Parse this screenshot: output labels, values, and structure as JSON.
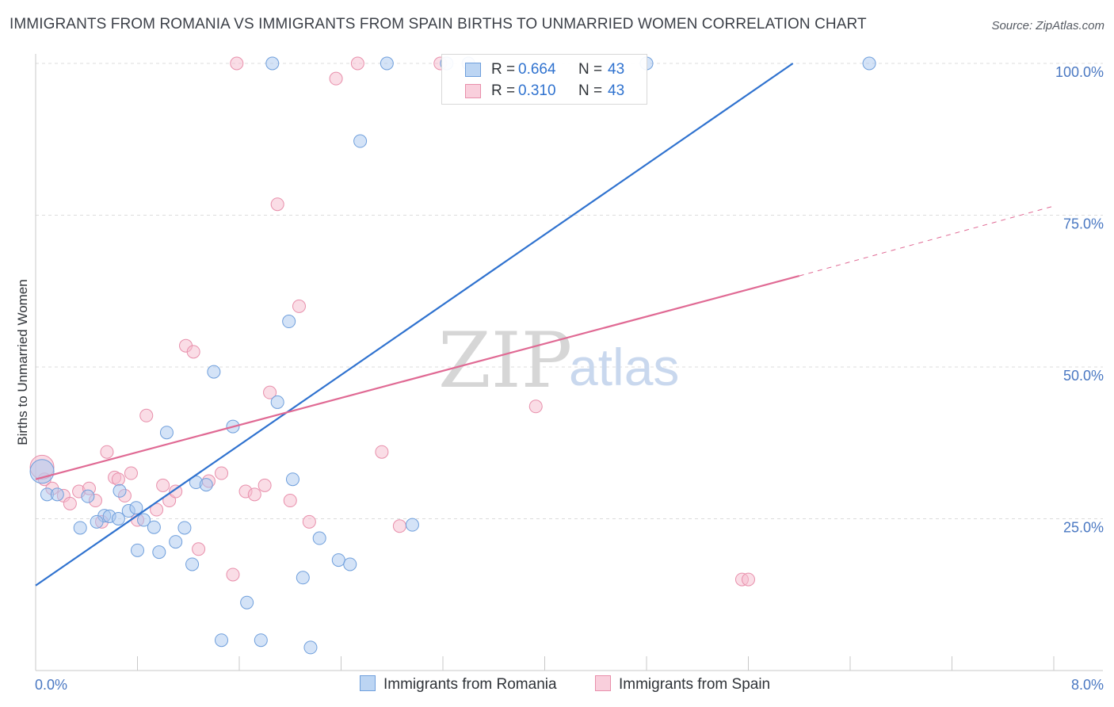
{
  "header": {
    "title": "IMMIGRANTS FROM ROMANIA VS IMMIGRANTS FROM SPAIN BIRTHS TO UNMARRIED WOMEN CORRELATION CHART",
    "source": "Source: ZipAtlas.com"
  },
  "watermark": {
    "zip": "ZIP",
    "atlas": "atlas"
  },
  "legend": {
    "rows": [
      {
        "r_label": "R =",
        "r_value": "0.664",
        "n_label": "N =",
        "n_value": "43"
      },
      {
        "r_label": "R =",
        "r_value": "0.310",
        "n_label": "N =",
        "n_value": "43"
      }
    ]
  },
  "colors": {
    "romania_fill": "#a9c8ef",
    "romania_edge": "#6f9fdc",
    "romania_line": "#2f72cf",
    "spain_fill": "#f6bccd",
    "spain_edge": "#e88fab",
    "spain_line": "#e06a94",
    "tick_text": "#4a78c2",
    "grid": "#dcdcdc"
  },
  "chart_data": {
    "type": "scatter",
    "title": "IMMIGRANTS FROM ROMANIA VS IMMIGRANTS FROM SPAIN BIRTHS TO UNMARRIED WOMEN CORRELATION CHART",
    "xlabel": "",
    "ylabel": "Births to Unmarried Women",
    "xlim": [
      0,
      8
    ],
    "ylim": [
      0,
      100
    ],
    "x_tick_labels": [
      "0.0%",
      "8.0%"
    ],
    "y_ticks": [
      25,
      50,
      75,
      100
    ],
    "y_tick_labels": [
      "25.0%",
      "50.0%",
      "75.0%",
      "100.0%"
    ],
    "grid": true,
    "legend_position": "top-center",
    "series": [
      {
        "name": "Immigrants from Romania",
        "r": 0.664,
        "n": 43,
        "points": [
          [
            0.09,
            29.0
          ],
          [
            0.17,
            29.0
          ],
          [
            0.41,
            28.7
          ],
          [
            0.54,
            25.5
          ],
          [
            0.66,
            29.6
          ],
          [
            0.35,
            23.5
          ],
          [
            0.48,
            24.5
          ],
          [
            0.58,
            25.4
          ],
          [
            0.65,
            25.0
          ],
          [
            0.73,
            26.3
          ],
          [
            0.8,
            19.8
          ],
          [
            0.79,
            26.8
          ],
          [
            0.85,
            24.8
          ],
          [
            0.93,
            23.6
          ],
          [
            0.97,
            19.5
          ],
          [
            1.03,
            39.2
          ],
          [
            1.1,
            21.2
          ],
          [
            1.17,
            23.5
          ],
          [
            1.23,
            17.5
          ],
          [
            1.26,
            31.0
          ],
          [
            1.34,
            30.6
          ],
          [
            1.4,
            49.2
          ],
          [
            1.46,
            5.0
          ],
          [
            1.55,
            40.2
          ],
          [
            1.66,
            11.2
          ],
          [
            1.77,
            5.0
          ],
          [
            1.86,
            100.0
          ],
          [
            1.9,
            44.2
          ],
          [
            1.99,
            57.5
          ],
          [
            2.02,
            31.5
          ],
          [
            2.1,
            15.3
          ],
          [
            2.16,
            3.8
          ],
          [
            2.23,
            21.8
          ],
          [
            2.38,
            18.2
          ],
          [
            2.47,
            17.5
          ],
          [
            2.55,
            87.2
          ],
          [
            2.76,
            100.0
          ],
          [
            2.96,
            24.0
          ],
          [
            3.23,
            100.0
          ],
          [
            3.4,
            100.0
          ],
          [
            4.8,
            100.0
          ],
          [
            6.55,
            100.0
          ],
          [
            0.05,
            32.8
          ]
        ],
        "trend": {
          "x": [
            0.0,
            5.95
          ],
          "y": [
            14.0,
            100.0
          ]
        }
      },
      {
        "name": "Immigrants from Spain",
        "r": 0.31,
        "n": 43,
        "points": [
          [
            0.07,
            31.5
          ],
          [
            0.13,
            30.0
          ],
          [
            0.22,
            28.8
          ],
          [
            0.27,
            27.5
          ],
          [
            0.34,
            29.5
          ],
          [
            0.42,
            30.0
          ],
          [
            0.47,
            28.0
          ],
          [
            0.52,
            24.5
          ],
          [
            0.56,
            36.0
          ],
          [
            0.62,
            31.8
          ],
          [
            0.65,
            31.5
          ],
          [
            0.7,
            28.8
          ],
          [
            0.75,
            32.5
          ],
          [
            0.8,
            24.8
          ],
          [
            0.87,
            42.0
          ],
          [
            0.95,
            26.5
          ],
          [
            1.0,
            30.5
          ],
          [
            1.05,
            28.0
          ],
          [
            1.1,
            29.5
          ],
          [
            1.18,
            53.5
          ],
          [
            1.24,
            52.5
          ],
          [
            1.28,
            20.0
          ],
          [
            1.36,
            31.2
          ],
          [
            1.46,
            32.5
          ],
          [
            1.55,
            15.8
          ],
          [
            1.65,
            29.5
          ],
          [
            1.72,
            29.0
          ],
          [
            1.8,
            30.5
          ],
          [
            1.84,
            45.8
          ],
          [
            1.9,
            76.8
          ],
          [
            2.0,
            28.0
          ],
          [
            2.07,
            60.0
          ],
          [
            2.15,
            24.5
          ],
          [
            2.36,
            97.5
          ],
          [
            2.53,
            100.0
          ],
          [
            2.72,
            36.0
          ],
          [
            2.86,
            23.8
          ],
          [
            3.18,
            100.0
          ],
          [
            3.93,
            43.5
          ],
          [
            5.55,
            15.0
          ],
          [
            5.6,
            15.0
          ],
          [
            1.58,
            100.0
          ],
          [
            0.05,
            33.5
          ]
        ],
        "trend": {
          "x": [
            0.0,
            6.0
          ],
          "y": [
            31.5,
            65.0
          ],
          "dashed_extension": {
            "x": [
              6.0,
              8.0
            ],
            "y": [
              65.0,
              76.5
            ]
          }
        }
      }
    ]
  }
}
